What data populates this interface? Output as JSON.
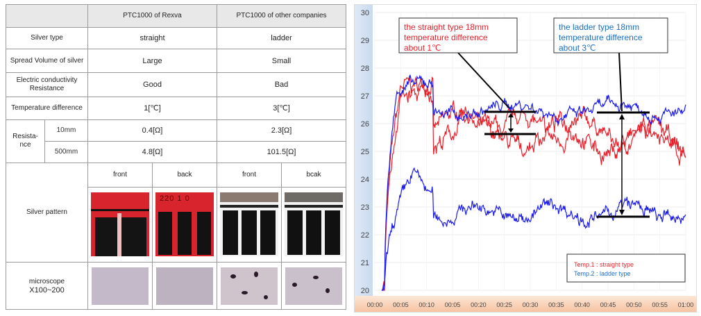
{
  "table": {
    "col_rexva": "PTC1000 of Rexva",
    "col_other": "PTC1000 of other companies",
    "rows": [
      {
        "label": "Silver type",
        "rexva": "straight",
        "other": "ladder"
      },
      {
        "label": "Spread Volume of silver",
        "rexva": "Large",
        "other": "Small"
      },
      {
        "label": "Electric conductivity Resistance",
        "rexva": "Good",
        "other": "Bad"
      },
      {
        "label": "Temperature difference",
        "rexva": "1[℃]",
        "other": "3[℃]"
      }
    ],
    "resistance": {
      "label": "Resista-nce",
      "rows": [
        {
          "length": "10mm",
          "rexva": "0.4[Ω]",
          "other": "2.3[Ω]"
        },
        {
          "length": "500mm",
          "rexva": "4.8[Ω]",
          "other": "101.5[Ω]"
        }
      ]
    },
    "pattern": {
      "label": "Silver pattern",
      "headers": [
        "front",
        "back",
        "front",
        "bcak"
      ],
      "back_text": "220  1 0"
    },
    "microscope": {
      "label": "microscope",
      "magnification": "X100~200"
    }
  },
  "chart_data": {
    "type": "line",
    "ylim": [
      20,
      30
    ],
    "yticks": [
      20,
      21,
      22,
      23,
      24,
      25,
      26,
      27,
      28,
      29,
      30
    ],
    "xticks": [
      "00:00",
      "00:05",
      "00:10",
      "00:05",
      "00:20",
      "00:25",
      "00:30",
      "00:35",
      "00:40",
      "00:45",
      "00:50",
      "00:55",
      "01:00"
    ],
    "annotations": [
      {
        "lines": [
          "the straight type 18mm",
          "temperature difference",
          "about 1℃"
        ],
        "color": "#e8202a"
      },
      {
        "lines": [
          "the ladder type 18mm",
          "temperature difference",
          "about  3℃"
        ],
        "color": "#1a6fc4"
      }
    ],
    "legend": [
      {
        "label": "Temp.1 : straight type",
        "color": "#e8202a"
      },
      {
        "label": "Temp.2 : ladder type",
        "color": "#1a6fc4"
      }
    ],
    "series_colors": {
      "red": "#e8202a",
      "blue": "#1a1af0"
    }
  }
}
